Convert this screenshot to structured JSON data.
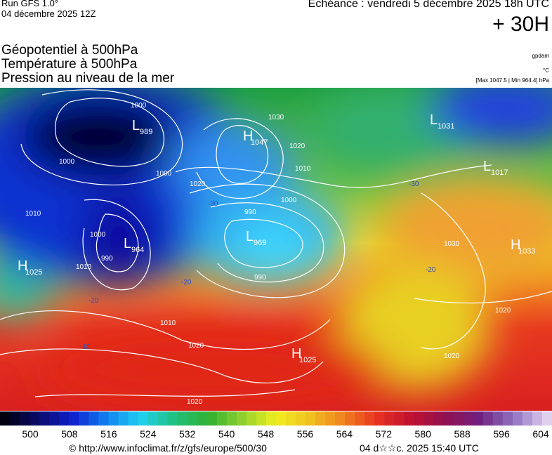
{
  "header": {
    "run": "Run GFS 1.0°",
    "date": "04 décembre 2025 12Z",
    "echeance": "Echéance : vendredi 5 décembre 2025 18h UTC",
    "lead": "+ 30H"
  },
  "titles": [
    "Géopotentiel à 500hPa",
    "Température à 500hPa",
    "Pression au niveau de la mer"
  ],
  "units": {
    "geopotential": "gpdam",
    "temperature": "°C",
    "pressure": "[Max 1047.5 | Min 964.4] hPa"
  },
  "pressure_centers": [
    {
      "type": "L",
      "value": 989
    },
    {
      "type": "H",
      "value": 1047
    },
    {
      "type": "L",
      "value": 964
    },
    {
      "type": "L",
      "value": 969
    },
    {
      "type": "H",
      "value": 1025
    },
    {
      "type": "L",
      "value": 1031
    },
    {
      "type": "L",
      "value": 1017
    },
    {
      "type": "H",
      "value": 1033
    },
    {
      "type": "H",
      "value": 1025
    }
  ],
  "isobar_labels": [
    1000,
    1000,
    1030,
    1020,
    1020,
    1010,
    1000,
    990,
    990,
    1000,
    1010,
    1000,
    990,
    1010,
    1010,
    1020,
    1020,
    1030,
    1020,
    1020
  ],
  "temperature_labels": [
    -30,
    -30,
    -20,
    -20,
    -10,
    -20
  ],
  "colorbar_ticks": [
    500,
    508,
    516,
    524,
    532,
    540,
    548,
    556,
    564,
    572,
    580,
    588,
    596,
    604
  ],
  "footer": {
    "source": "© http://www.infoclimat.fr/z/gfs/europe/500/30",
    "timestamp": "04 d☆☆c. 2025 15:40 UTC"
  }
}
